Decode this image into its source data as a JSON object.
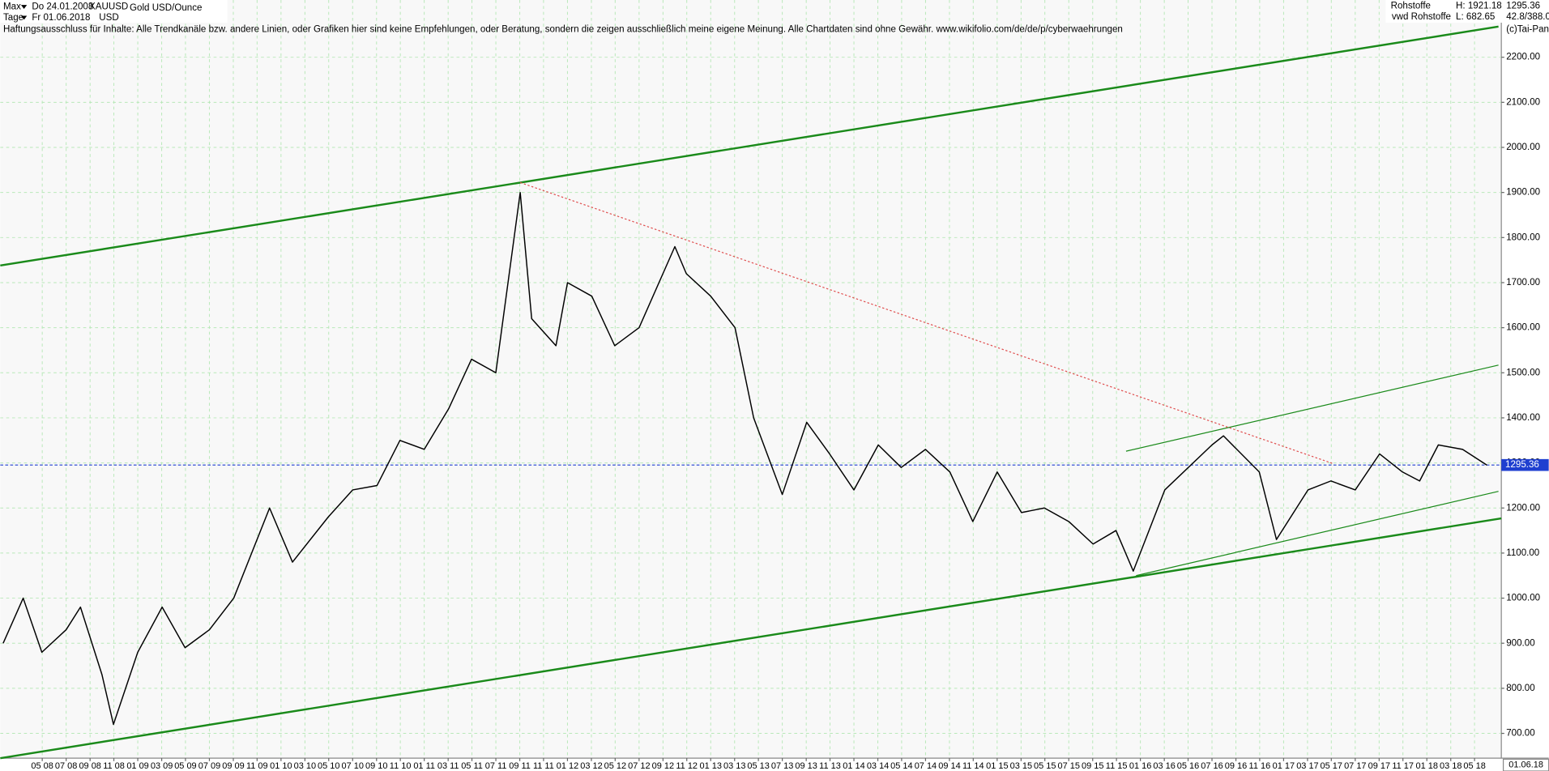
{
  "header": {
    "range": "Max",
    "from_date": "Do 24.01.2008",
    "symbol": "XAUUSD",
    "name": "Gold USD/Ounce",
    "period": "Tage",
    "to_date": "Fr 01.06.2018",
    "currency": "USD",
    "group": "Rohstoffe",
    "high": "H: 1921.18",
    "source": "vwd Rohstoffe",
    "low": "L: 682.65",
    "ratio": "42.8/388.0",
    "copyright": "(c)Tai-Pan",
    "disclaimer": "Haftungsausschluss für Inhalte: Alle Trendkanäle bzw. andere Linien, oder Grafiken hier sind keine Empfehlungen, oder Beratung, sondern die zeigen ausschließlich meine eigene Meinung. Alle Chartdaten sind ohne Gewähr.  www.wikifolio.com/de/de/p/cyberwaehrungen"
  },
  "chart_data": {
    "type": "line",
    "color": "#000000",
    "grid": true,
    "xlim": [
      2008.04,
      2018.52
    ],
    "ylim": [
      645,
      2327
    ],
    "xticks": [
      {
        "value": 2008.333,
        "label": "05 08"
      },
      {
        "value": 2008.5,
        "label": "07 08"
      },
      {
        "value": 2008.667,
        "label": "09 08"
      },
      {
        "value": 2008.833,
        "label": "11 08"
      },
      {
        "value": 2009.0,
        "label": "01 09"
      },
      {
        "value": 2009.167,
        "label": "03 09"
      },
      {
        "value": 2009.333,
        "label": "05 09"
      },
      {
        "value": 2009.5,
        "label": "07 09"
      },
      {
        "value": 2009.667,
        "label": "09 09"
      },
      {
        "value": 2009.833,
        "label": "11 09"
      },
      {
        "value": 2010.0,
        "label": "01 10"
      },
      {
        "value": 2010.167,
        "label": "03 10"
      },
      {
        "value": 2010.333,
        "label": "05 10"
      },
      {
        "value": 2010.5,
        "label": "07 10"
      },
      {
        "value": 2010.667,
        "label": "09 10"
      },
      {
        "value": 2010.833,
        "label": "11 10"
      },
      {
        "value": 2011.0,
        "label": "01 11"
      },
      {
        "value": 2011.167,
        "label": "03 11"
      },
      {
        "value": 2011.333,
        "label": "05 11"
      },
      {
        "value": 2011.5,
        "label": "07 11"
      },
      {
        "value": 2011.667,
        "label": "09 11"
      },
      {
        "value": 2011.833,
        "label": "11 11"
      },
      {
        "value": 2012.0,
        "label": "01 12"
      },
      {
        "value": 2012.167,
        "label": "03 12"
      },
      {
        "value": 2012.333,
        "label": "05 12"
      },
      {
        "value": 2012.5,
        "label": "07 12"
      },
      {
        "value": 2012.667,
        "label": "09 12"
      },
      {
        "value": 2012.833,
        "label": "11 12"
      },
      {
        "value": 2013.0,
        "label": "01 13"
      },
      {
        "value": 2013.167,
        "label": "03 13"
      },
      {
        "value": 2013.333,
        "label": "05 13"
      },
      {
        "value": 2013.5,
        "label": "07 13"
      },
      {
        "value": 2013.667,
        "label": "09 13"
      },
      {
        "value": 2013.833,
        "label": "11 13"
      },
      {
        "value": 2014.0,
        "label": "01 14"
      },
      {
        "value": 2014.167,
        "label": "03 14"
      },
      {
        "value": 2014.333,
        "label": "05 14"
      },
      {
        "value": 2014.5,
        "label": "07 14"
      },
      {
        "value": 2014.667,
        "label": "09 14"
      },
      {
        "value": 2014.833,
        "label": "11 14"
      },
      {
        "value": 2015.0,
        "label": "01 15"
      },
      {
        "value": 2015.167,
        "label": "03 15"
      },
      {
        "value": 2015.333,
        "label": "05 15"
      },
      {
        "value": 2015.5,
        "label": "07 15"
      },
      {
        "value": 2015.667,
        "label": "09 15"
      },
      {
        "value": 2015.833,
        "label": "11 15"
      },
      {
        "value": 2016.0,
        "label": "01 16"
      },
      {
        "value": 2016.167,
        "label": "03 16"
      },
      {
        "value": 2016.333,
        "label": "05 16"
      },
      {
        "value": 2016.5,
        "label": "07 16"
      },
      {
        "value": 2016.667,
        "label": "09 16"
      },
      {
        "value": 2016.833,
        "label": "11 16"
      },
      {
        "value": 2017.0,
        "label": "01 17"
      },
      {
        "value": 2017.167,
        "label": "03 17"
      },
      {
        "value": 2017.333,
        "label": "05 17"
      },
      {
        "value": 2017.5,
        "label": "07 17"
      },
      {
        "value": 2017.667,
        "label": "09 17"
      },
      {
        "value": 2017.833,
        "label": "11 17"
      },
      {
        "value": 2018.0,
        "label": "01 18"
      },
      {
        "value": 2018.167,
        "label": "03 18"
      },
      {
        "value": 2018.333,
        "label": "05 18"
      }
    ],
    "yticks": [
      {
        "value": 700,
        "label": "700.00"
      },
      {
        "value": 800,
        "label": "800.00"
      },
      {
        "value": 900,
        "label": "900.00"
      },
      {
        "value": 1000,
        "label": "1000.00"
      },
      {
        "value": 1100,
        "label": "1100.00"
      },
      {
        "value": 1200,
        "label": "1200.00"
      },
      {
        "value": 1300,
        "label": "1300.00"
      },
      {
        "value": 1400,
        "label": "1400.00"
      },
      {
        "value": 1500,
        "label": "1500.00"
      },
      {
        "value": 1600,
        "label": "1600.00"
      },
      {
        "value": 1700,
        "label": "1700.00"
      },
      {
        "value": 1800,
        "label": "1800.00"
      },
      {
        "value": 1900,
        "label": "1900.00"
      },
      {
        "value": 2000,
        "label": "2000.00"
      },
      {
        "value": 2100,
        "label": "2100.00"
      },
      {
        "value": 2200,
        "label": "2200.00"
      }
    ],
    "x": [
      2008.06,
      2008.2,
      2008.33,
      2008.5,
      2008.6,
      2008.75,
      2008.83,
      2009.0,
      2009.17,
      2009.33,
      2009.5,
      2009.67,
      2009.92,
      2010.08,
      2010.33,
      2010.5,
      2010.67,
      2010.83,
      2011.0,
      2011.17,
      2011.33,
      2011.5,
      2011.67,
      2011.75,
      2011.92,
      2012.0,
      2012.17,
      2012.33,
      2012.5,
      2012.75,
      2012.83,
      2013.0,
      2013.17,
      2013.3,
      2013.5,
      2013.67,
      2013.83,
      2014.0,
      2014.17,
      2014.33,
      2014.5,
      2014.67,
      2014.83,
      2015.0,
      2015.17,
      2015.33,
      2015.5,
      2015.67,
      2015.83,
      2015.95,
      2016.17,
      2016.5,
      2016.58,
      2016.83,
      2016.95,
      2017.17,
      2017.33,
      2017.5,
      2017.67,
      2017.83,
      2017.95,
      2018.08,
      2018.25,
      2018.42
    ],
    "values": [
      900,
      1000,
      880,
      930,
      980,
      830,
      720,
      880,
      980,
      890,
      930,
      1000,
      1200,
      1080,
      1180,
      1240,
      1250,
      1350,
      1330,
      1420,
      1530,
      1500,
      1900,
      1620,
      1560,
      1700,
      1670,
      1560,
      1600,
      1780,
      1720,
      1670,
      1600,
      1400,
      1230,
      1390,
      1320,
      1240,
      1340,
      1290,
      1330,
      1280,
      1170,
      1280,
      1190,
      1200,
      1170,
      1120,
      1150,
      1060,
      1240,
      1340,
      1360,
      1280,
      1130,
      1240,
      1260,
      1240,
      1320,
      1280,
      1260,
      1340,
      1330,
      1295
    ],
    "trendlines": [
      {
        "x": [
          2008.04,
          2018.5
        ],
        "values": [
          1738,
          2268
        ],
        "color": "#1a8a1a",
        "style": "thick"
      },
      {
        "x": [
          2008.04,
          2018.52
        ],
        "values": [
          645,
          1177
        ],
        "color": "#1a8a1a",
        "style": "thick"
      },
      {
        "x": [
          2015.9,
          2018.5
        ],
        "values": [
          1326,
          1517
        ],
        "color": "#1a8a1a",
        "style": "thin"
      },
      {
        "x": [
          2015.97,
          2018.5
        ],
        "values": [
          1050,
          1237
        ],
        "color": "#1a8a1a",
        "style": "thin"
      },
      {
        "x": [
          2011.67,
          2017.35
        ],
        "values": [
          1922,
          1298
        ],
        "color": "#e05050",
        "style": "dotted"
      }
    ],
    "last_price": 1295.36,
    "last_color": "#1f3fd0",
    "last_date": "01.06.18"
  }
}
